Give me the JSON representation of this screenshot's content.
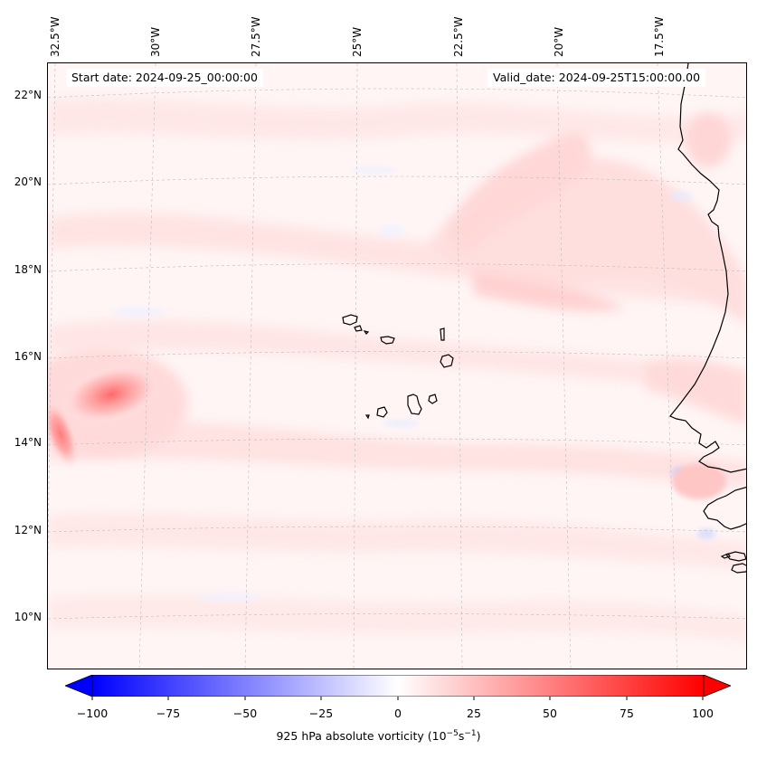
{
  "map": {
    "start_date": "Start date: 2024-09-25_00:00:00",
    "valid_date": "Valid_date: 2024-09-25T15:00:00.00",
    "lon_labels": [
      "32.5°W",
      "30°W",
      "27.5°W",
      "25°W",
      "22.5°W",
      "20°W",
      "17.5°W"
    ],
    "lat_labels": [
      "22°N",
      "20°N",
      "18°N",
      "16°N",
      "14°N",
      "12°N",
      "10°N"
    ],
    "field": "925 hPa absolute vorticity",
    "units": "(10⁻⁵s⁻¹)"
  },
  "colorbar": {
    "ticks": [
      "−100",
      "−75",
      "−50",
      "−25",
      "0",
      "25",
      "50",
      "75",
      "100"
    ],
    "label_main": "925 hPa absolute vorticity (10",
    "label_exp1": "−5",
    "label_mid": "s",
    "label_exp2": "−1",
    "label_end": ")",
    "min": -100,
    "max": 100,
    "low_color": "#0000ff",
    "mid_color": "#ffffff",
    "high_color": "#ff0000"
  }
}
